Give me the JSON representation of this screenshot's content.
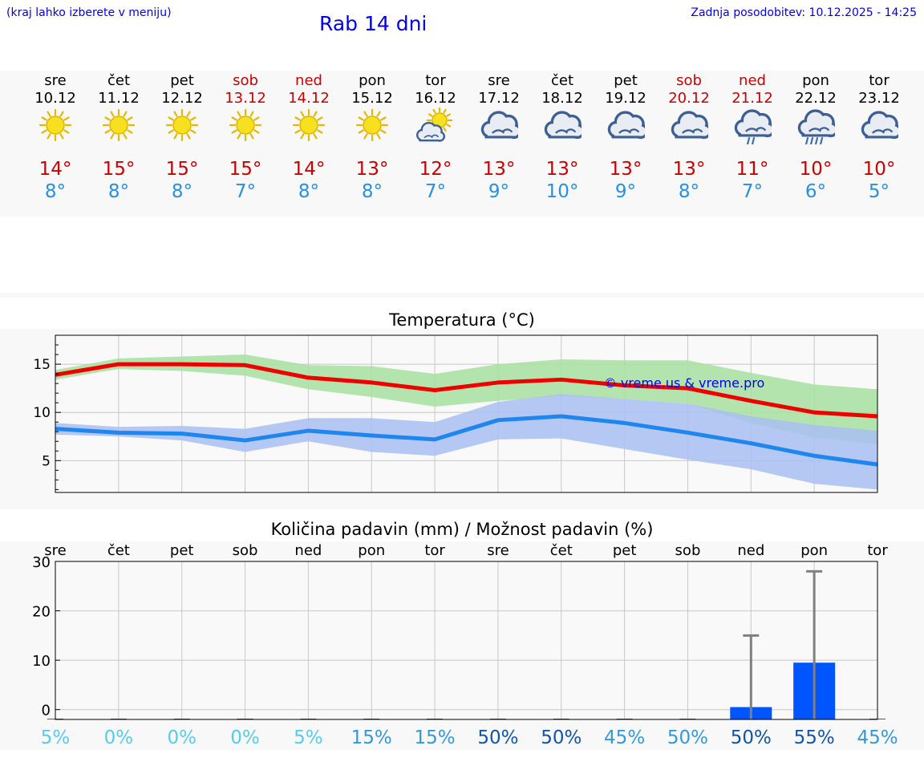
{
  "header": {
    "hint": "(kraj lahko izberete v meniju)",
    "title": "Rab 14 dni",
    "updated": "Zadnja posodobitev: 10.12.2025 - 14:25"
  },
  "colors": {
    "link": "#0000ee",
    "max": "#cc0000",
    "min": "#2590e8",
    "max_line": "#ee0000",
    "max_band": "#a8e0a0",
    "min_line": "#1f86f0",
    "min_band": "#a9c0f2",
    "precip_bar": "#0055ff",
    "error_bar": "#808080"
  },
  "days": [
    {
      "name": "sre",
      "date": "10.12",
      "weekend": false,
      "icon": "sun-icon",
      "max": "14°",
      "min": "8°"
    },
    {
      "name": "čet",
      "date": "11.12",
      "weekend": false,
      "icon": "sun-icon",
      "max": "15°",
      "min": "8°"
    },
    {
      "name": "pet",
      "date": "12.12",
      "weekend": false,
      "icon": "sun-icon",
      "max": "15°",
      "min": "8°"
    },
    {
      "name": "sob",
      "date": "13.12",
      "weekend": true,
      "icon": "sun-icon",
      "max": "15°",
      "min": "7°"
    },
    {
      "name": "ned",
      "date": "14.12",
      "weekend": true,
      "icon": "sun-icon",
      "max": "14°",
      "min": "8°"
    },
    {
      "name": "pon",
      "date": "15.12",
      "weekend": false,
      "icon": "sun-icon",
      "max": "13°",
      "min": "8°"
    },
    {
      "name": "tor",
      "date": "16.12",
      "weekend": false,
      "icon": "sun-cloud-icon",
      "max": "12°",
      "min": "7°"
    },
    {
      "name": "sre",
      "date": "17.12",
      "weekend": false,
      "icon": "cloud-icon",
      "max": "13°",
      "min": "9°"
    },
    {
      "name": "čet",
      "date": "18.12",
      "weekend": false,
      "icon": "cloud-icon",
      "max": "13°",
      "min": "10°"
    },
    {
      "name": "pet",
      "date": "19.12",
      "weekend": false,
      "icon": "cloud-icon",
      "max": "13°",
      "min": "9°"
    },
    {
      "name": "sob",
      "date": "20.12",
      "weekend": true,
      "icon": "cloud-icon",
      "max": "13°",
      "min": "8°"
    },
    {
      "name": "ned",
      "date": "21.12",
      "weekend": true,
      "icon": "cloud-light-rain-icon",
      "max": "11°",
      "min": "7°"
    },
    {
      "name": "pon",
      "date": "22.12",
      "weekend": false,
      "icon": "cloud-rain-icon",
      "max": "10°",
      "min": "6°"
    },
    {
      "name": "tor",
      "date": "23.12",
      "weekend": false,
      "icon": "cloud-icon",
      "max": "10°",
      "min": "5°"
    }
  ],
  "chart_data": [
    {
      "type": "line",
      "title": "Temperatura (°C)",
      "watermark": "© vreme.us & vreme.pro",
      "x": [
        0,
        1,
        2,
        3,
        4,
        5,
        6,
        7,
        8,
        9,
        10,
        11,
        12,
        13
      ],
      "ylim": [
        1.7,
        18
      ],
      "yticks": [
        "5",
        "10",
        "15"
      ],
      "ytick_values": [
        5,
        10,
        15
      ],
      "series": [
        {
          "name": "max",
          "values": [
            13.9,
            15.0,
            15.0,
            14.9,
            13.6,
            13.1,
            12.3,
            13.1,
            13.4,
            12.8,
            12.5,
            11.2,
            10.0,
            9.6
          ]
        },
        {
          "name": "max_low",
          "values": [
            13.4,
            14.5,
            14.3,
            13.8,
            12.4,
            11.6,
            10.6,
            11.2,
            11.7,
            11.4,
            10.9,
            8.9,
            7.4,
            6.7
          ]
        },
        {
          "name": "max_high",
          "values": [
            14.4,
            15.6,
            15.8,
            16.0,
            14.9,
            14.8,
            14.0,
            15.0,
            15.5,
            15.4,
            15.4,
            14.1,
            12.9,
            12.4
          ]
        },
        {
          "name": "min",
          "values": [
            8.3,
            7.9,
            7.8,
            7.1,
            8.1,
            7.6,
            7.2,
            9.2,
            9.6,
            8.9,
            7.9,
            6.8,
            5.5,
            4.6
          ]
        },
        {
          "name": "min_low",
          "values": [
            7.7,
            7.5,
            7.1,
            5.9,
            7.0,
            5.9,
            5.5,
            7.2,
            7.3,
            6.2,
            5.1,
            4.1,
            2.6,
            2.0
          ]
        },
        {
          "name": "min_high",
          "values": [
            8.9,
            8.5,
            8.6,
            8.3,
            9.4,
            9.4,
            9.0,
            11.1,
            11.9,
            11.4,
            10.9,
            9.6,
            8.7,
            8.1
          ]
        }
      ]
    },
    {
      "type": "bar",
      "title": "Količina padavin (mm) / Možnost padavin (%)",
      "categories": [
        "sre",
        "čet",
        "pet",
        "sob",
        "ned",
        "pon",
        "tor",
        "sre",
        "čet",
        "pet",
        "sob",
        "ned",
        "pon",
        "tor"
      ],
      "ylim": [
        -2,
        30
      ],
      "yticks": [
        "0",
        "10",
        "20",
        "30"
      ],
      "ytick_values": [
        0,
        10,
        20,
        30
      ],
      "values": [
        0,
        0,
        0,
        0,
        0,
        0,
        0,
        0,
        0,
        0,
        0,
        0.5,
        9.5,
        0
      ],
      "error_high": [
        0,
        0,
        0,
        0,
        0,
        0,
        0,
        0,
        0,
        0,
        0,
        15,
        28,
        0
      ],
      "probability": [
        "5%",
        "0%",
        "0%",
        "0%",
        "5%",
        "15%",
        "15%",
        "50%",
        "50%",
        "45%",
        "50%",
        "50%",
        "55%",
        "45%"
      ],
      "probability_colors": [
        "#55ccee",
        "#55ccee",
        "#55ccee",
        "#55ccee",
        "#55ccee",
        "#3399dd",
        "#3399dd",
        "#1155aa",
        "#1155aa",
        "#3399dd",
        "#3399dd",
        "#1155aa",
        "#1155aa",
        "#3399dd"
      ]
    }
  ]
}
